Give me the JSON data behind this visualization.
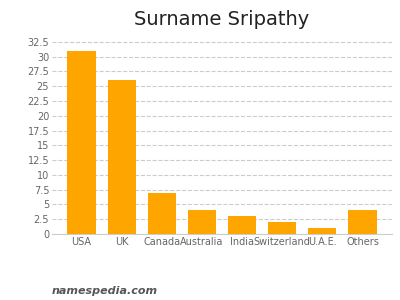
{
  "title": "Surname Sripathy",
  "categories": [
    "USA",
    "UK",
    "Canada",
    "Australia",
    "India",
    "Switzerland",
    "U.A.E.",
    "Others"
  ],
  "values": [
    31.0,
    26.0,
    7.0,
    4.0,
    3.0,
    2.0,
    1.0,
    4.0
  ],
  "bar_color": "#FFA500",
  "background_color": "#ffffff",
  "ylim": [
    0,
    33.5
  ],
  "yticks": [
    0,
    2.5,
    5,
    7.5,
    10,
    12.5,
    15,
    17.5,
    20,
    22.5,
    25,
    27.5,
    30,
    32.5
  ],
  "grid_color": "#cccccc",
  "title_fontsize": 14,
  "tick_fontsize": 7,
  "footnote": "namespedia.com",
  "footnote_fontsize": 8
}
